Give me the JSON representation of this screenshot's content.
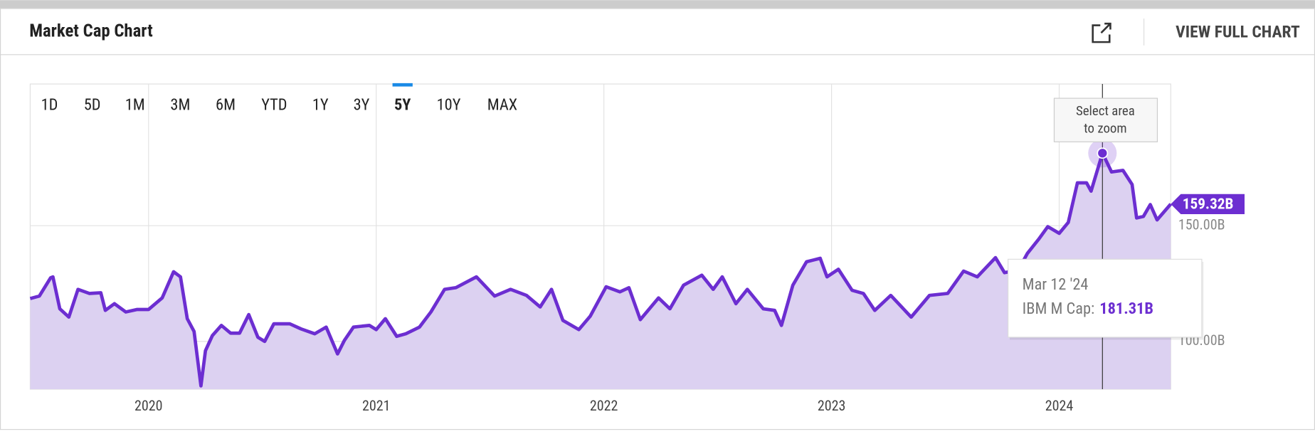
{
  "header": {
    "title": "Market Cap Chart",
    "link": "VIEW FULL CHART"
  },
  "ranges": [
    "1D",
    "5D",
    "1M",
    "3M",
    "6M",
    "YTD",
    "1Y",
    "3Y",
    "5Y",
    "10Y",
    "MAX"
  ],
  "active_range": 8,
  "zoom_hint": [
    "Select area",
    "to zoom"
  ],
  "chart_data": {
    "type": "area",
    "x": [
      2019.48,
      2019.52,
      2019.57,
      2019.58,
      2019.61,
      2019.65,
      2019.69,
      2019.74,
      2019.79,
      2019.81,
      2019.85,
      2019.9,
      2019.95,
      2020.0,
      2020.06,
      2020.11,
      2020.14,
      2020.17,
      2020.2,
      2020.23,
      2020.25,
      2020.28,
      2020.32,
      2020.36,
      2020.4,
      2020.44,
      2020.48,
      2020.51,
      2020.55,
      2020.62,
      2020.67,
      2020.73,
      2020.78,
      2020.83,
      2020.86,
      2020.9,
      2020.97,
      2021.0,
      2021.04,
      2021.09,
      2021.13,
      2021.19,
      2021.24,
      2021.3,
      2021.35,
      2021.44,
      2021.52,
      2021.59,
      2021.66,
      2021.72,
      2021.77,
      2021.82,
      2021.89,
      2021.94,
      2022.01,
      2022.07,
      2022.11,
      2022.16,
      2022.24,
      2022.29,
      2022.35,
      2022.43,
      2022.48,
      2022.52,
      2022.58,
      2022.63,
      2022.7,
      2022.75,
      2022.78,
      2022.83,
      2022.89,
      2022.95,
      2022.98,
      2023.03,
      2023.09,
      2023.14,
      2023.19,
      2023.26,
      2023.35,
      2023.43,
      2023.51,
      2023.58,
      2023.64,
      2023.72,
      2023.76,
      2023.82,
      2023.86,
      2023.91,
      2023.95,
      2024.0,
      2024.04,
      2024.08,
      2024.12,
      2024.14,
      2024.19,
      2024.23,
      2024.28,
      2024.32,
      2024.34,
      2024.37,
      2024.4,
      2024.43,
      2024.49
    ],
    "series": [
      {
        "name": "IBM M Cap",
        "color": "#6c2ed1",
        "fill": "#dcd1f1",
        "values": [
          118.5,
          119.6,
          127.5,
          127.9,
          114.1,
          110.5,
          122.5,
          120.7,
          121,
          113.4,
          116.3,
          112.7,
          113.8,
          113.8,
          118.8,
          130.1,
          127.9,
          109.8,
          104.3,
          80.8,
          96,
          102.5,
          106.9,
          103.6,
          103.6,
          111.6,
          101.8,
          100,
          107.6,
          107.6,
          105.4,
          103.3,
          106.2,
          94.6,
          100.4,
          106.2,
          106.9,
          105.1,
          109.8,
          102.2,
          103.3,
          106.2,
          112.7,
          122.5,
          123.2,
          127.9,
          119.6,
          122.5,
          119.9,
          114.9,
          122.5,
          109.1,
          105.1,
          110.9,
          123.6,
          121.4,
          123.2,
          109.4,
          118.8,
          114.1,
          124.3,
          128.6,
          122.5,
          127.9,
          116.3,
          122.5,
          114.1,
          113.4,
          106.9,
          124.3,
          134.4,
          135.9,
          127.9,
          131.2,
          122.1,
          120.7,
          113.4,
          119.9,
          110.5,
          119.9,
          120.7,
          130.4,
          127.9,
          136.2,
          129.7,
          130.8,
          138,
          144.2,
          149.6,
          146.7,
          151.4,
          168.5,
          168.5,
          164.9,
          181.31,
          173.2,
          173.9,
          167.8,
          153.3,
          154,
          159.1,
          152.5,
          159.32
        ]
      }
    ],
    "xlim": [
      2019.48,
      2024.49
    ],
    "xticks": [
      2020,
      2021,
      2022,
      2023,
      2024
    ],
    "ylim": [
      79.35,
      211.2
    ],
    "yticks": [
      {
        "value": 100,
        "label": "100.00B"
      },
      {
        "value": 150,
        "label": "150.00B"
      }
    ],
    "grid": true,
    "last_value": {
      "value": 159.32,
      "label": "159.32B"
    },
    "tooltip": {
      "x": 2024.19,
      "date": "Mar 12 '24",
      "label": "IBM M Cap:",
      "value": 181.31,
      "value_label": "181.31B"
    }
  }
}
